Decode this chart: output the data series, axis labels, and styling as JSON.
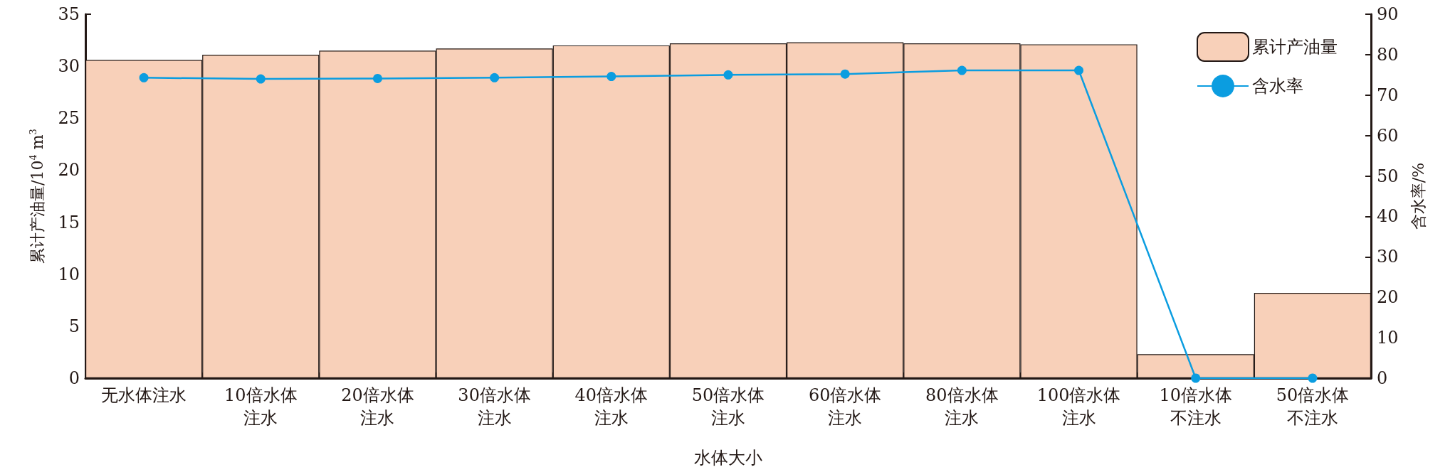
{
  "chart_data": {
    "type": "bar",
    "xlabel": "水体大小",
    "ylabel": "累计产油量/10$^{4}$ m$^{3}$",
    "y2label": "含水率/%",
    "categories": [
      "无水体注水",
      "10倍水体注水",
      "20倍水体注水",
      "30倍水体注水",
      "40倍水体注水",
      "50倍水体注水",
      "60倍水体注水",
      "80倍水体注水",
      "100倍水体注水",
      "10倍水体不注水",
      "50倍水体不注水"
    ],
    "series": [
      {
        "name": "累计产油量",
        "color": "#f8d0b9",
        "values": [
          30.6,
          31.1,
          31.5,
          31.7,
          32.0,
          32.2,
          32.3,
          32.2,
          32.1,
          2.3,
          8.2
        ]
      },
      {
        "name": "含水率",
        "type": "line",
        "axis": "y2",
        "color": "#0b9de0",
        "marker": "circle",
        "values": [
          74.3,
          74.0,
          74.1,
          74.3,
          74.6,
          75.0,
          75.2,
          76.1,
          76.1,
          0,
          0
        ]
      }
    ],
    "ylim": [
      0,
      35
    ],
    "yticks": [
      0,
      5,
      10,
      15,
      20,
      25,
      30,
      35
    ],
    "y2lim": [
      0,
      90
    ],
    "y2ticks": [
      0,
      10,
      20,
      30,
      40,
      50,
      60,
      70,
      80,
      90
    ],
    "legend": "top right",
    "grid": false
  }
}
